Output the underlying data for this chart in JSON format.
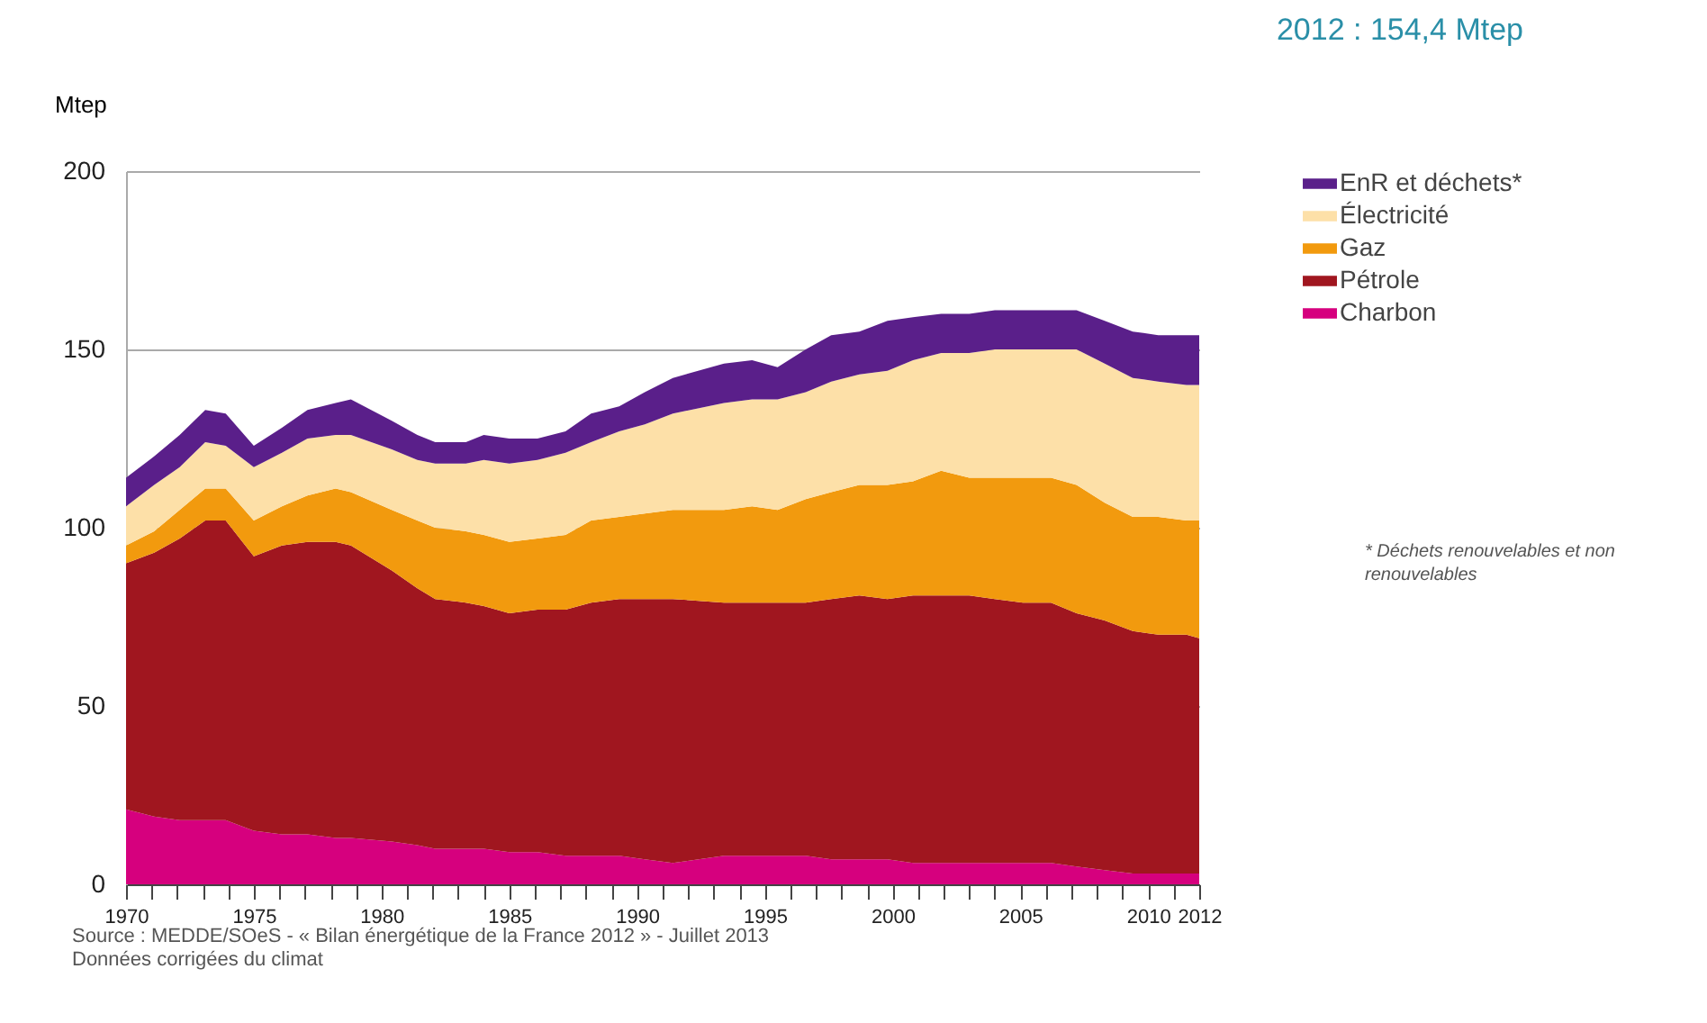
{
  "chart_data": {
    "type": "area",
    "title": "2012 : 154,4 Mtep",
    "ylabel": "Mtep",
    "stacked": true,
    "grid": "y",
    "legend": "right",
    "annotations": [
      "* Déchets renouvelables et non renouvelables",
      "Source : MEDDE/SOeS - « Bilan énergétique de la France 2012 » - Juillet 2013",
      "Données corrigées du climat"
    ],
    "x": [
      1970.0,
      1971.1,
      1972.1,
      1973.1,
      1973.9,
      1975.0,
      1976.1,
      1977.1,
      1978.2,
      1978.8,
      1980.4,
      1981.4,
      1982.1,
      1983.3,
      1984.0,
      1985.0,
      1986.1,
      1987.2,
      1988.2,
      1989.3,
      1990.3,
      1991.4,
      1993.4,
      1994.5,
      1995.5,
      1996.6,
      1997.6,
      1998.7,
      1999.8,
      2000.8,
      2001.9,
      2003.0,
      2004.0,
      2005.1,
      2006.2,
      2007.2,
      2008.3,
      2009.4,
      2010.4,
      2011.5,
      2012.0
    ],
    "series": [
      {
        "name": "Charbon",
        "color": "#d6007e",
        "values": [
          21,
          19,
          18,
          18,
          18,
          15,
          14,
          14,
          13,
          13,
          12,
          11,
          10,
          10,
          10,
          9,
          9,
          8,
          8,
          8,
          7,
          6,
          8,
          8,
          8,
          8,
          7,
          7,
          7,
          6,
          6,
          6,
          6,
          6,
          6,
          5,
          4,
          3,
          3,
          3,
          3
        ]
      },
      {
        "name": "Pétrole",
        "color": "#a0161f",
        "values": [
          69,
          74,
          79,
          84,
          84,
          77,
          81,
          82,
          83,
          82,
          76,
          72,
          70,
          69,
          68,
          67,
          68,
          69,
          71,
          72,
          73,
          74,
          71,
          71,
          71,
          71,
          73,
          74,
          73,
          75,
          75,
          75,
          74,
          73,
          73,
          71,
          70,
          68,
          67,
          67,
          66
        ]
      },
      {
        "name": "Gaz",
        "color": "#f29a0e",
        "values": [
          5,
          6,
          8,
          9,
          9,
          10,
          11,
          13,
          15,
          15,
          17,
          19,
          20,
          20,
          20,
          20,
          20,
          21,
          23,
          23,
          24,
          25,
          26,
          27,
          26,
          29,
          30,
          31,
          32,
          32,
          35,
          33,
          34,
          35,
          35,
          36,
          33,
          32,
          33,
          32,
          33
        ]
      },
      {
        "name": "Électricité",
        "color": "#fde0a8",
        "values": [
          11,
          13,
          12,
          13,
          12,
          15,
          15,
          16,
          15,
          16,
          17,
          17,
          18,
          19,
          21,
          22,
          22,
          23,
          22,
          24,
          25,
          27,
          30,
          30,
          31,
          30,
          31,
          31,
          32,
          34,
          33,
          35,
          36,
          36,
          36,
          38,
          39,
          39,
          38,
          38,
          38
        ]
      },
      {
        "name": "EnR et déchets*",
        "color": "#5a1f8a",
        "values": [
          8,
          8,
          9,
          9,
          9,
          6,
          7,
          8,
          9,
          10,
          8,
          7,
          6,
          6,
          7,
          7,
          6,
          6,
          8,
          7,
          9,
          10,
          11,
          11,
          9,
          12,
          13,
          12,
          14,
          12,
          11,
          11,
          11,
          11,
          11,
          11,
          12,
          13,
          13,
          14,
          14
        ]
      }
    ],
    "xlim": [
      1970,
      2012
    ],
    "xticks": [
      1970,
      {
        "value": 1971,
        "label": null
      },
      {
        "value": 1972,
        "label": null
      },
      {
        "value": 1973,
        "label": null
      },
      {
        "value": 1974,
        "label": null
      },
      1975,
      {
        "value": 1976,
        "label": null
      },
      {
        "value": 1977,
        "label": null
      },
      {
        "value": 1978,
        "label": null
      },
      {
        "value": 1979,
        "label": null
      },
      1980,
      {
        "value": 1981,
        "label": null
      },
      {
        "value": 1982,
        "label": null
      },
      {
        "value": 1983,
        "label": null
      },
      {
        "value": 1984,
        "label": null
      },
      1985,
      {
        "value": 1986,
        "label": null
      },
      {
        "value": 1987,
        "label": null
      },
      {
        "value": 1988,
        "label": null
      },
      {
        "value": 1989,
        "label": null
      },
      1990,
      {
        "value": 1991,
        "label": null
      },
      {
        "value": 1992,
        "label": null
      },
      {
        "value": 1993,
        "label": null
      },
      {
        "value": 1994,
        "label": null
      },
      1995,
      {
        "value": 1996,
        "label": null
      },
      {
        "value": 1997,
        "label": null
      },
      {
        "value": 1998,
        "label": null
      },
      {
        "value": 1999,
        "label": null
      },
      2000,
      {
        "value": 2001,
        "label": null
      },
      {
        "value": 2002,
        "label": null
      },
      {
        "value": 2003,
        "label": null
      },
      {
        "value": 2004,
        "label": null
      },
      2005,
      {
        "value": 2006,
        "label": null
      },
      {
        "value": 2007,
        "label": null
      },
      {
        "value": 2008,
        "label": null
      },
      {
        "value": 2009,
        "label": null
      },
      2010,
      {
        "value": 2011,
        "label": null
      },
      2012
    ],
    "ylim": [
      0,
      200
    ],
    "yticks": [
      0,
      50,
      100,
      150,
      200
    ]
  }
}
